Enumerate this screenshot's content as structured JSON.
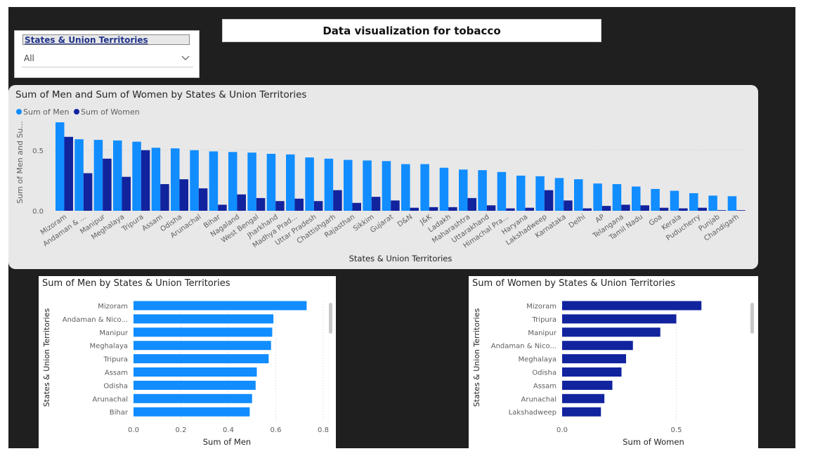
{
  "page": {
    "title": "Data visualization for tobacco"
  },
  "slicer": {
    "title": "States & Union Territories",
    "value": "All",
    "chevron_icon": "chevron-down-icon"
  },
  "colors": {
    "men": "#118dff",
    "women": "#12239e"
  },
  "chart_data": [
    {
      "type": "bar",
      "title": "Sum of Men and Sum of Women by States & Union Territories",
      "xlabel": "States & Union Territories",
      "ylabel": "Sum of Men  and Su...",
      "legend_position": "top-left",
      "ylim": [
        0,
        0.8
      ],
      "yticks": [
        "0.0",
        "0.5"
      ],
      "grid": true,
      "categories": [
        "Mizoram",
        "Andaman & ...",
        "Manipur",
        "Meghalaya",
        "Tripura",
        "Assam",
        "Odisha",
        "Arunachal",
        "Bihar",
        "Nagaland",
        "West Bengal",
        "Jharkhand",
        "Madhya Prad...",
        "Uttar Pradesh",
        "Chattishgarh",
        "Rajasthan",
        "Sikkim",
        "Gujarat",
        "D&N",
        "J&K",
        "Ladakh",
        "Maharashtra",
        "Uttarakhand",
        "Himachal Pra...",
        "Haryana",
        "Lakshadweep",
        "Karnataka",
        "Delhi",
        "AP",
        "Telangana",
        "Tamil Nadu",
        "Goa",
        "Kerala",
        "Puducherry",
        "Punjab",
        "Chandigarh"
      ],
      "series": [
        {
          "name": "Sum of Men",
          "values": [
            0.73,
            0.59,
            0.585,
            0.58,
            0.57,
            0.52,
            0.515,
            0.5,
            0.49,
            0.485,
            0.48,
            0.47,
            0.465,
            0.44,
            0.43,
            0.42,
            0.415,
            0.41,
            0.385,
            0.385,
            0.355,
            0.34,
            0.335,
            0.32,
            0.29,
            0.285,
            0.27,
            0.26,
            0.225,
            0.22,
            0.2,
            0.18,
            0.165,
            0.145,
            0.125,
            0.12
          ]
        },
        {
          "name": "Sum of Women",
          "values": [
            0.61,
            0.31,
            0.43,
            0.28,
            0.5,
            0.22,
            0.26,
            0.185,
            0.05,
            0.135,
            0.105,
            0.08,
            0.1,
            0.08,
            0.17,
            0.065,
            0.115,
            0.085,
            0.025,
            0.03,
            0.03,
            0.105,
            0.045,
            0.02,
            0.025,
            0.17,
            0.085,
            0.02,
            0.04,
            0.05,
            0.045,
            0.025,
            0.02,
            0.025,
            0.005,
            0.005
          ]
        }
      ]
    },
    {
      "type": "bar",
      "orientation": "horizontal",
      "title": "Sum of Men by States & Union Territories",
      "xlabel": "Sum of Men",
      "ylabel": "States & Union Territories",
      "xlim": [
        0,
        0.8
      ],
      "xticks": [
        "0.0",
        "0.2",
        "0.4",
        "0.6",
        "0.8"
      ],
      "categories": [
        "Mizoram",
        "Andaman &  Nico...",
        "Manipur",
        "Meghalaya",
        "Tripura",
        "Assam",
        "Odisha",
        "Arunachal",
        "Bihar"
      ],
      "values": [
        0.73,
        0.59,
        0.585,
        0.58,
        0.57,
        0.52,
        0.515,
        0.5,
        0.49
      ]
    },
    {
      "type": "bar",
      "orientation": "horizontal",
      "title": "Sum of Women by States & Union Territories",
      "xlabel": "Sum of Women",
      "ylabel": "States & Union Territories",
      "xlim": [
        0,
        0.8
      ],
      "xticks": [
        "0.0",
        "0.5"
      ],
      "categories": [
        "Mizoram",
        "Tripura",
        "Manipur",
        "Andaman &  Nico...",
        "Meghalaya",
        "Odisha",
        "Assam",
        "Arunachal",
        "Lakshadweep"
      ],
      "values": [
        0.61,
        0.5,
        0.43,
        0.31,
        0.28,
        0.26,
        0.22,
        0.185,
        0.17
      ]
    }
  ]
}
